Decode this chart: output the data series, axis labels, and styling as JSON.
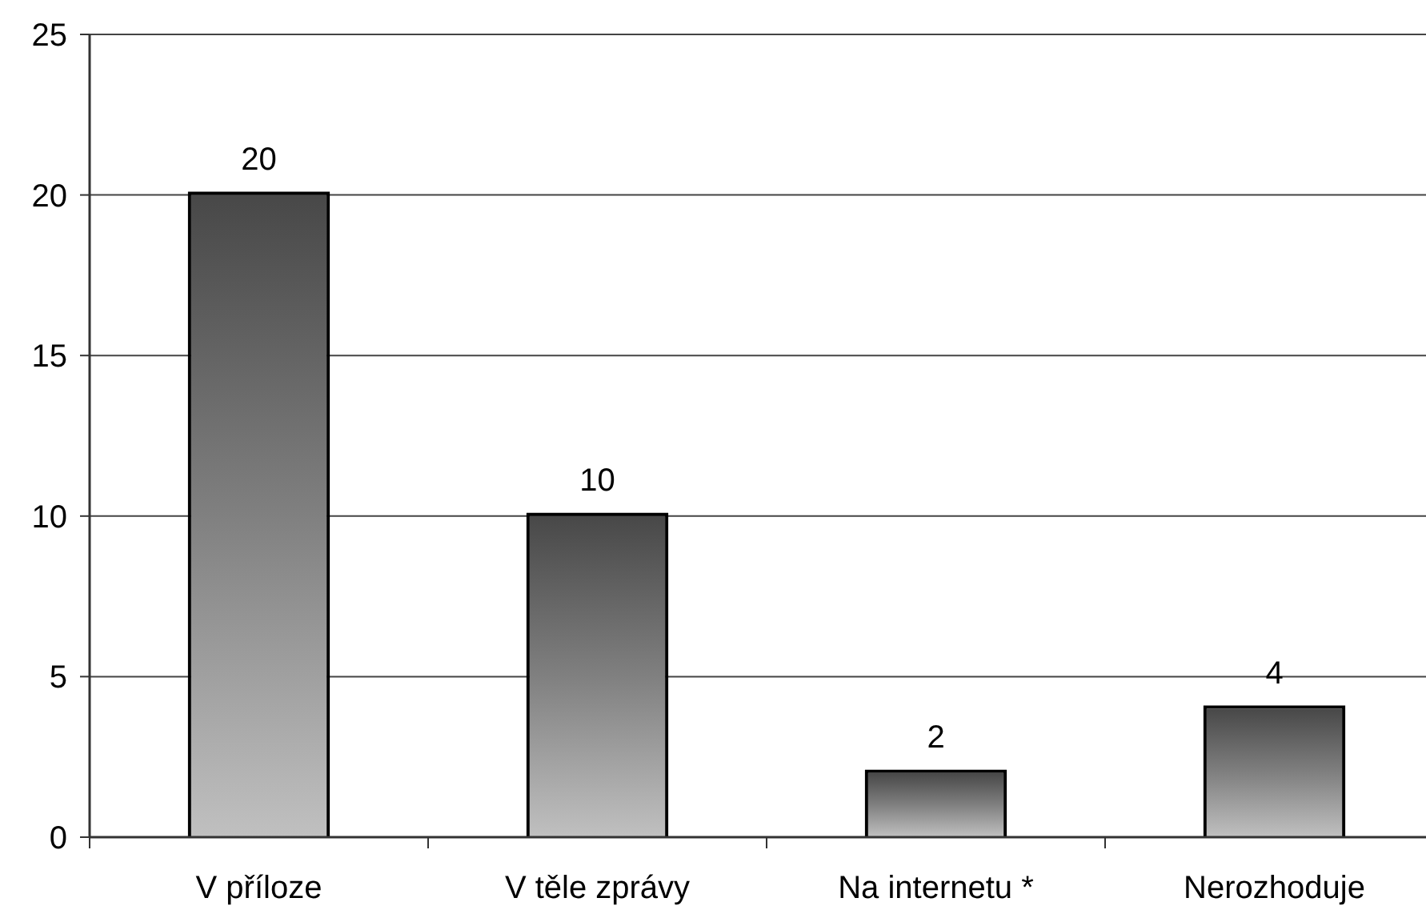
{
  "chart_data": {
    "type": "bar",
    "categories": [
      "V příloze",
      "V těle zprávy",
      "Na internetu *",
      "Nerozhoduje"
    ],
    "values": [
      20,
      10,
      2,
      4
    ],
    "color": "#808080",
    "ylim": [
      0,
      25
    ],
    "yticks": [
      0,
      5,
      10,
      15,
      20,
      25
    ],
    "grid": "y",
    "data_labels": true
  }
}
